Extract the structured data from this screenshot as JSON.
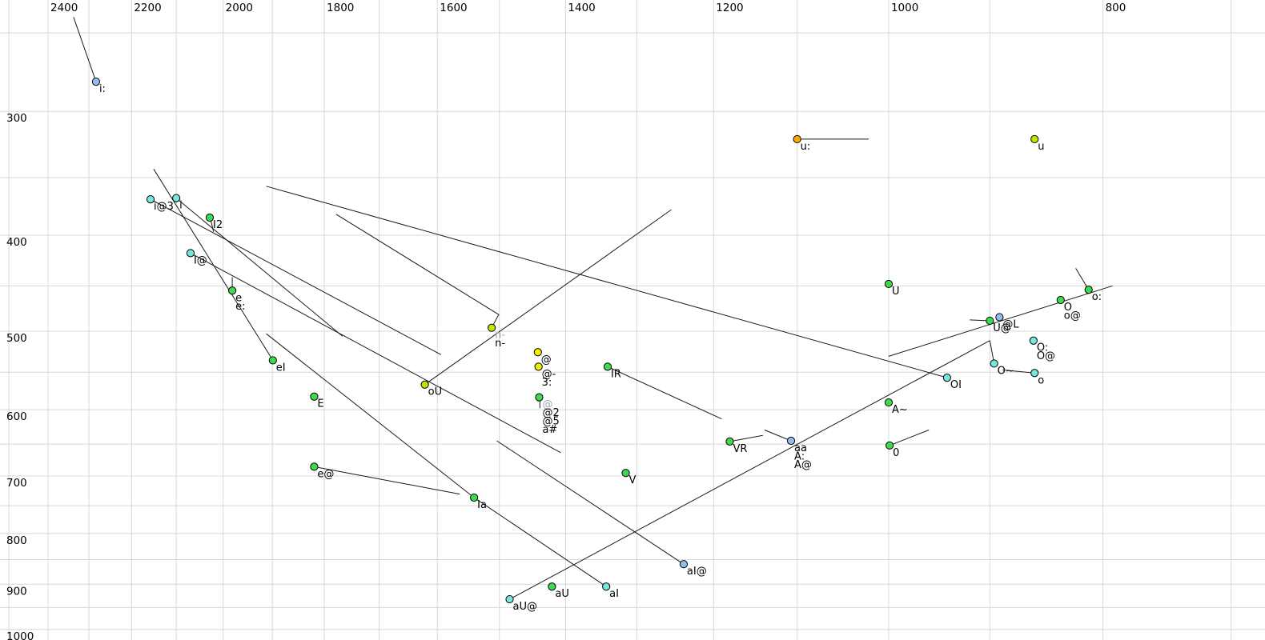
{
  "colors": {
    "background": "#ffffff",
    "gridline": "#d8d8d8",
    "trajectory": "#1a1a1a",
    "axis_label": "#000000",
    "point_label": "#000000",
    "point_label_gray": "#9aa2b2",
    "point_stroke": "#000000",
    "point_fill": {
      "cyan": "#77e7dd",
      "green": "#3fd94f",
      "yellow": "#efef00",
      "yellowgreen": "#bce800",
      "blue": "#93beea",
      "orange": "#ffa800"
    }
  },
  "chart_data": {
    "type": "scatter",
    "title": "",
    "x_axis": {
      "unit": "Hz",
      "scale": "log",
      "reversed": true,
      "tick_values": [
        2400,
        2200,
        2000,
        1800,
        1600,
        1400,
        1200,
        1000,
        800
      ],
      "tick_labels": [
        "2400",
        "2200",
        "2000",
        "1800",
        "1600",
        "1400",
        "1200",
        "1000",
        "800"
      ],
      "gridline_values": [
        2500,
        2400,
        2300,
        2200,
        2100,
        2000,
        1900,
        1800,
        1700,
        1600,
        1500,
        1400,
        1300,
        1200,
        1100,
        1000,
        900,
        800,
        700
      ],
      "range": [
        2500,
        650
      ]
    },
    "y_axis": {
      "unit": "Hz",
      "scale": "log",
      "reversed": false,
      "tick_values": [
        300,
        400,
        500,
        600,
        700,
        800,
        900,
        1000
      ],
      "tick_labels": [
        "300",
        "400",
        "500",
        "600",
        "700",
        "800",
        "900",
        "1000"
      ],
      "gridline_values": [
        250,
        300,
        350,
        400,
        450,
        500,
        550,
        600,
        650,
        700,
        750,
        800,
        850,
        900,
        950,
        1000
      ],
      "range": [
        240,
        1010
      ]
    },
    "points": [
      {
        "id": "i-long",
        "f2": 2283,
        "f1": 280,
        "color": "blue",
        "labels": [
          {
            "t": "i:"
          }
        ]
      },
      {
        "id": "i@3",
        "f2": 2157,
        "f1": 368,
        "color": "cyan",
        "labels": [
          {
            "t": "i@3"
          }
        ]
      },
      {
        "id": "i",
        "f2": 2100,
        "f1": 367,
        "color": "cyan",
        "labels": [
          {
            "t": "i"
          }
        ]
      },
      {
        "id": "I2",
        "f2": 2028,
        "f1": 384,
        "color": "green",
        "labels": [
          {
            "t": "I2"
          }
        ]
      },
      {
        "id": "I@",
        "f2": 2069,
        "f1": 417,
        "color": "cyan",
        "labels": [
          {
            "t": "I@"
          }
        ]
      },
      {
        "id": "e",
        "f2": 1981,
        "f1": 455,
        "color": "green",
        "labels": [
          {
            "t": "e"
          },
          {
            "t": "e:"
          }
        ]
      },
      {
        "id": "eI",
        "f2": 1899,
        "f1": 535,
        "color": "green",
        "labels": [
          {
            "t": "eI"
          }
        ]
      },
      {
        "id": "E",
        "f2": 1819,
        "f1": 582,
        "color": "green",
        "labels": [
          {
            "t": "E"
          }
        ]
      },
      {
        "id": "e@",
        "f2": 1819,
        "f1": 685,
        "color": "green",
        "labels": [
          {
            "t": "e@"
          }
        ]
      },
      {
        "id": "Ia",
        "f2": 1540,
        "f1": 736,
        "color": "green",
        "labels": [
          {
            "t": "Ia"
          }
        ]
      },
      {
        "id": "oU",
        "f2": 1621,
        "f1": 566,
        "color": "yellowgreen",
        "labels": [
          {
            "t": "oU"
          }
        ]
      },
      {
        "id": "n-",
        "f2": 1512,
        "f1": 496,
        "color": "yellowgreen",
        "labels": [
          {
            "t": "n-",
            "gray": true
          },
          {
            "t": "n-"
          }
        ]
      },
      {
        "id": "@",
        "f2": 1441,
        "f1": 525,
        "color": "yellow",
        "labels": [
          {
            "t": "@"
          }
        ]
      },
      {
        "id": "@-",
        "f2": 1440,
        "f1": 543,
        "color": "yellow",
        "labels": [
          {
            "t": "@-"
          },
          {
            "t": "3:"
          }
        ]
      },
      {
        "id": "@2",
        "f2": 1439,
        "f1": 583,
        "color": "green",
        "labels": [
          {
            "t": "@",
            "gray": true
          },
          {
            "t": "@2"
          },
          {
            "t": "@5"
          },
          {
            "t": "a#"
          }
        ]
      },
      {
        "id": "IR",
        "f2": 1340,
        "f1": 543,
        "color": "green",
        "labels": [
          {
            "t": "IR"
          }
        ]
      },
      {
        "id": "V",
        "f2": 1315,
        "f1": 695,
        "color": "green",
        "labels": [
          {
            "t": "V"
          }
        ]
      },
      {
        "id": "VR",
        "f2": 1180,
        "f1": 646,
        "color": "green",
        "labels": [
          {
            "t": "VR"
          }
        ]
      },
      {
        "id": "aa",
        "f2": 1107,
        "f1": 645,
        "color": "blue",
        "labels": [
          {
            "t": "aa"
          },
          {
            "t": "A:"
          },
          {
            "t": "A@"
          }
        ]
      },
      {
        "id": "A~",
        "f2": 1000,
        "f1": 590,
        "color": "green",
        "labels": [
          {
            "t": "A~"
          }
        ]
      },
      {
        "id": "0",
        "f2": 999,
        "f1": 652,
        "color": "green",
        "labels": [
          {
            "t": "0"
          }
        ]
      },
      {
        "id": "U",
        "f2": 1000,
        "f1": 448,
        "color": "green",
        "labels": [
          {
            "t": "U"
          }
        ]
      },
      {
        "id": "u-long",
        "f2": 1100,
        "f1": 320,
        "color": "orange",
        "labels": [
          {
            "t": "u:"
          }
        ]
      },
      {
        "id": "u",
        "f2": 859,
        "f1": 320,
        "color": "yellowgreen",
        "labels": [
          {
            "t": "u"
          }
        ]
      },
      {
        "id": "U@",
        "f2": 900,
        "f1": 488,
        "color": "green",
        "labels": [
          {
            "t": "U@"
          }
        ]
      },
      {
        "id": "@L",
        "f2": 891,
        "f1": 484,
        "color": "blue",
        "labels": [
          {
            "t": "@L"
          }
        ]
      },
      {
        "id": "O",
        "f2": 836,
        "f1": 465,
        "color": "green",
        "labels": [
          {
            "t": "O"
          },
          {
            "t": "o@"
          }
        ]
      },
      {
        "id": "o-long",
        "f2": 812,
        "f1": 454,
        "color": "green",
        "labels": [
          {
            "t": "o:"
          }
        ]
      },
      {
        "id": "O-long",
        "f2": 860,
        "f1": 511,
        "color": "cyan",
        "labels": [
          {
            "t": "O:"
          },
          {
            "t": "O@"
          }
        ]
      },
      {
        "id": "O~",
        "f2": 896,
        "f1": 539,
        "color": "cyan",
        "labels": [
          {
            "t": "O~"
          }
        ]
      },
      {
        "id": "o",
        "f2": 859,
        "f1": 551,
        "color": "cyan",
        "labels": [
          {
            "t": "o"
          }
        ]
      },
      {
        "id": "OI",
        "f2": 941,
        "f1": 557,
        "color": "cyan",
        "labels": [
          {
            "t": "OI"
          }
        ]
      },
      {
        "id": "aI@",
        "f2": 1238,
        "f1": 859,
        "color": "blue",
        "labels": [
          {
            "t": "aI@"
          }
        ]
      },
      {
        "id": "aU",
        "f2": 1420,
        "f1": 905,
        "color": "green",
        "labels": [
          {
            "t": "aU"
          }
        ]
      },
      {
        "id": "aI",
        "f2": 1342,
        "f1": 905,
        "color": "cyan",
        "labels": [
          {
            "t": "aI"
          }
        ]
      },
      {
        "id": "aU@",
        "f2": 1484,
        "f1": 932,
        "color": "cyan",
        "labels": [
          {
            "t": "aU@"
          }
        ]
      }
    ],
    "trajectories": [
      {
        "name": "traj-i-long",
        "pts": [
          [
            2337,
            241
          ],
          [
            2283,
            280
          ]
        ]
      },
      {
        "name": "traj-i-cluster-to-eI",
        "pts": [
          [
            2150,
            343
          ],
          [
            1899,
            535
          ]
        ]
      },
      {
        "name": "traj-i@3-out",
        "pts": [
          [
            2157,
            368
          ],
          [
            1594,
            528
          ]
        ]
      },
      {
        "name": "traj-i-out",
        "pts": [
          [
            2100,
            367
          ],
          [
            1766,
            506
          ]
        ]
      },
      {
        "name": "traj-I@-out",
        "pts": [
          [
            2069,
            417
          ],
          [
            1407,
            663
          ]
        ]
      },
      {
        "name": "traj-long-to-OI",
        "pts": [
          [
            1912,
            357
          ],
          [
            941,
            557
          ]
        ]
      },
      {
        "name": "traj-n-",
        "pts": [
          [
            1778,
            381
          ],
          [
            1501,
            481
          ],
          [
            1512,
            496
          ]
        ]
      },
      {
        "name": "traj-oU-up",
        "pts": [
          [
            1621,
            566
          ],
          [
            1254,
            377
          ]
        ]
      },
      {
        "name": "traj-into-Ia",
        "pts": [
          [
            1912,
            503
          ],
          [
            1540,
            736
          ]
        ]
      },
      {
        "name": "traj-Ia-to-aI",
        "pts": [
          [
            1540,
            736
          ],
          [
            1342,
            905
          ]
        ]
      },
      {
        "name": "traj-into-aI@",
        "pts": [
          [
            1504,
            645
          ],
          [
            1238,
            859
          ]
        ]
      },
      {
        "name": "traj-aU@-long",
        "pts": [
          [
            1484,
            932
          ],
          [
            900,
            511
          ]
        ]
      },
      {
        "name": "traj-IR-out",
        "pts": [
          [
            1340,
            543
          ],
          [
            1190,
            613
          ]
        ]
      },
      {
        "name": "traj-VR-out",
        "pts": [
          [
            1180,
            646
          ],
          [
            1140,
            637
          ]
        ]
      },
      {
        "name": "traj-into-aa",
        "pts": [
          [
            1138,
            629
          ],
          [
            1107,
            645
          ]
        ]
      },
      {
        "name": "traj-0-out",
        "pts": [
          [
            999,
            652
          ],
          [
            959,
            629
          ]
        ]
      },
      {
        "name": "traj-u-long-out",
        "pts": [
          [
            1100,
            320
          ],
          [
            1021,
            320
          ]
        ]
      },
      {
        "name": "traj-U@-out",
        "pts": [
          [
            900,
            488
          ],
          [
            919,
            487
          ]
        ]
      },
      {
        "name": "traj-right-rise",
        "pts": [
          [
            1000,
            530
          ],
          [
            792,
            450
          ]
        ]
      },
      {
        "name": "traj-o-long-tick",
        "pts": [
          [
            823,
            432
          ],
          [
            812,
            454
          ]
        ]
      },
      {
        "name": "traj-O~-tick",
        "pts": [
          [
            900,
            511
          ],
          [
            896,
            539
          ]
        ]
      },
      {
        "name": "traj-O~-to-o",
        "pts": [
          [
            888,
            547
          ],
          [
            859,
            551
          ]
        ]
      },
      {
        "name": "traj-e-tick",
        "pts": [
          [
            1981,
            441
          ],
          [
            1981,
            455
          ]
        ]
      },
      {
        "name": "traj-I2-tick",
        "pts": [
          [
            2026,
            386
          ],
          [
            2020,
            397
          ]
        ]
      },
      {
        "name": "traj-a#-tick",
        "pts": [
          [
            1438,
            585
          ],
          [
            1438,
            598
          ]
        ]
      },
      {
        "name": "traj-e@-out",
        "pts": [
          [
            1819,
            685
          ],
          [
            1563,
            730
          ]
        ]
      }
    ]
  }
}
